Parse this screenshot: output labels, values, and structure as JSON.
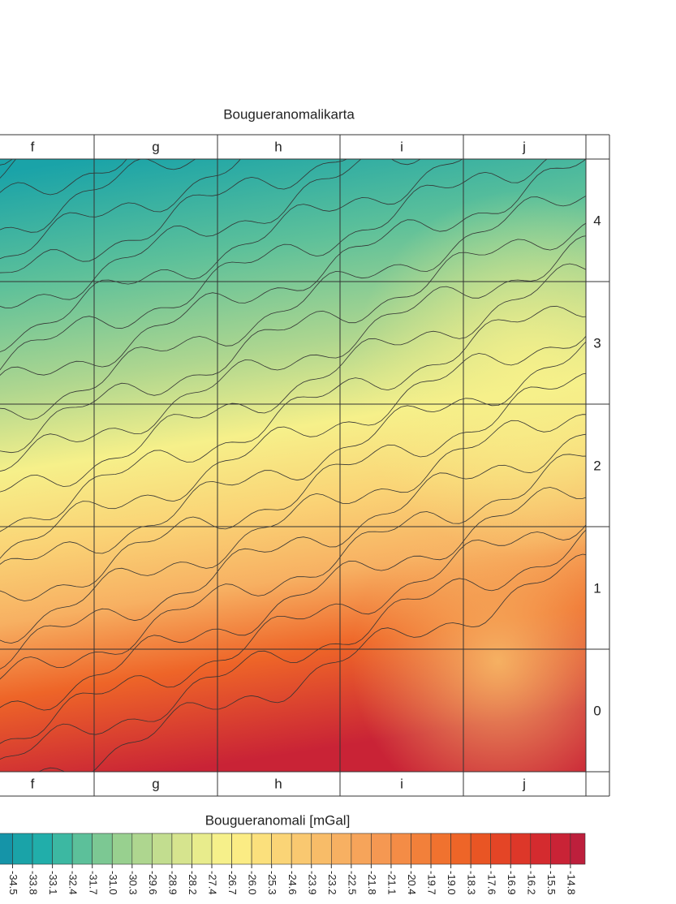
{
  "map": {
    "title": "Bougueranomalikarta",
    "columns": [
      "f",
      "g",
      "h",
      "i",
      "j"
    ],
    "rows": [
      "4",
      "3",
      "2",
      "1",
      "0"
    ],
    "legend": {
      "title": "Bougueranomali [mGal]",
      "levels": [
        "-34.5",
        "-33.8",
        "-33.1",
        "-32.4",
        "-31.7",
        "-31.0",
        "-30.3",
        "-29.6",
        "-28.9",
        "-28.2",
        "-27.4",
        "-26.7",
        "-26.0",
        "-25.3",
        "-24.6",
        "-23.9",
        "-23.2",
        "-22.5",
        "-21.8",
        "-21.1",
        "-20.4",
        "-19.7",
        "-19.0",
        "-18.3",
        "-17.6",
        "-16.9",
        "-16.2",
        "-15.5",
        "-14.8"
      ],
      "colors": [
        "#1594a8",
        "#1aa3a8",
        "#21aeaa",
        "#3cb8a2",
        "#5cc09a",
        "#7cc893",
        "#98d08f",
        "#aed68f",
        "#c2dd8f",
        "#d6e48e",
        "#e8ec8c",
        "#f6f08a",
        "#fbec84",
        "#fbe07c",
        "#fad476",
        "#f9c870",
        "#f8bc68",
        "#f7b062",
        "#f6a45a",
        "#f59852",
        "#f48c46",
        "#f2803a",
        "#f0722f",
        "#ee6528",
        "#e95524",
        "#e44526",
        "#dd3729",
        "#d42b2f",
        "#c92336",
        "#bd1f3c"
      ]
    }
  }
}
